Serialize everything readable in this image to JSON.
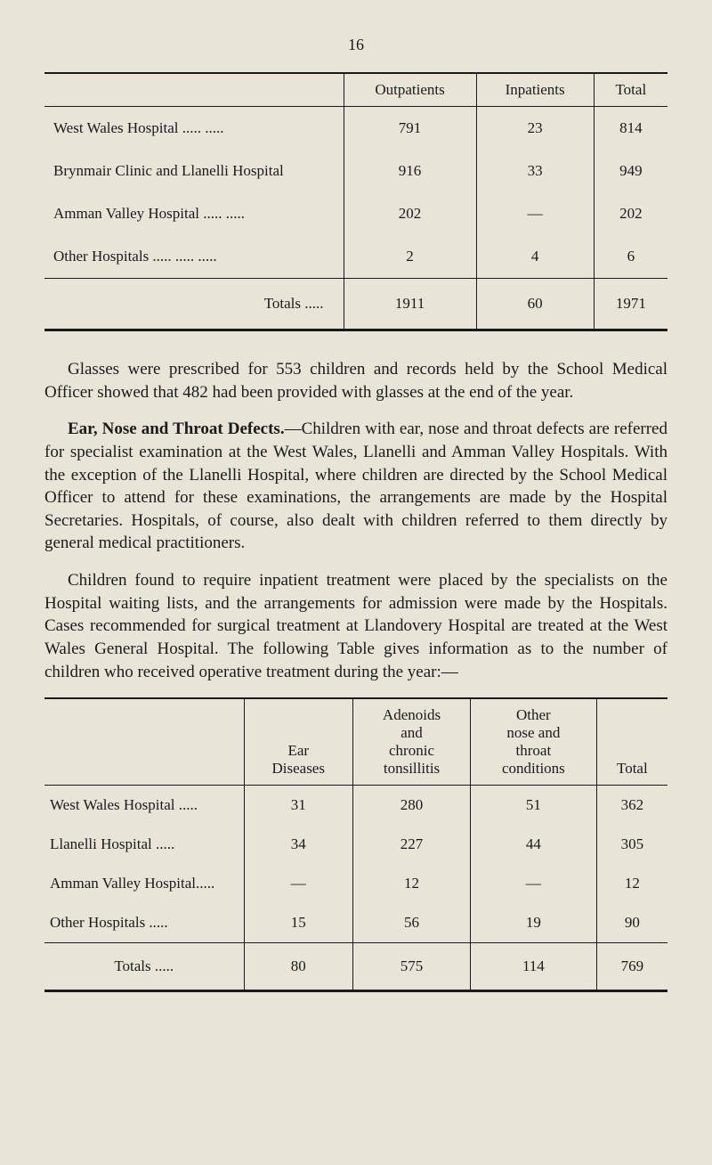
{
  "page_number": "16",
  "table1": {
    "headers": {
      "blank": "",
      "outpatients": "Outpatients",
      "inpatients": "Inpatients",
      "total": "Total"
    },
    "rows": [
      {
        "label": "West Wales Hospital      .....               .....",
        "c1": "791",
        "c2": "23",
        "c3": "814"
      },
      {
        "label": "Brynmair Clinic and Llanelli Hospital",
        "c1": "916",
        "c2": "33",
        "c3": "949"
      },
      {
        "label": "Amman Valley Hospital   .....               .....",
        "c1": "202",
        "c2": "—",
        "c3": "202"
      },
      {
        "label": "Other Hospitals .....               .....               .....",
        "c1": "2",
        "c2": "4",
        "c3": "6"
      }
    ],
    "totals": {
      "label": "Totals           .....",
      "c1": "1911",
      "c2": "60",
      "c3": "1971"
    }
  },
  "para1": "Glasses were prescribed for 553 children and records held by the School Medical Officer showed that 482 had been provided with glasses at the end of the year.",
  "para2_bold": "Ear, Nose and Throat Defects.",
  "para2_rest": "—Children with ear, nose and throat defects are referred for specialist examination at the West Wales, Llanelli and Amman Valley Hospitals. With the exception of the Llanelli Hospital, where children are directed by the School Medical Officer to attend for these examinations, the arrangements are made by the Hospital Secretaries. Hospitals, of course, also dealt with children referred to them directly by general medical practitioners.",
  "para3": "Children found to require inpatient treatment were placed by the specialists on the Hospital waiting lists, and the arrangements for admission were made by the Hospitals. Cases recommended for surgical treatment at Llandovery Hospital are treated at the West Wales General Hospital. The following Table gives information as to the number of children who received operative treatment during the year:—",
  "table2": {
    "headers": {
      "blank": "",
      "ear": "Ear\nDiseases",
      "adenoids": "Adenoids\nand\nchronic\ntonsillitis",
      "other": "Other\nnose and\nthroat\nconditions",
      "total": "Total"
    },
    "rows": [
      {
        "label": "West Wales Hospital      .....",
        "c1": "31",
        "c2": "280",
        "c3": "51",
        "c4": "362"
      },
      {
        "label": "Llanelli Hospital             .....",
        "c1": "34",
        "c2": "227",
        "c3": "44",
        "c4": "305"
      },
      {
        "label": "Amman Valley Hospital.....",
        "c1": "—",
        "c2": "12",
        "c3": "—",
        "c4": "12"
      },
      {
        "label": "Other Hospitals               .....",
        "c1": "15",
        "c2": "56",
        "c3": "19",
        "c4": "90"
      }
    ],
    "totals": {
      "label": "Totals        .....",
      "c1": "80",
      "c2": "575",
      "c3": "114",
      "c4": "769"
    }
  }
}
